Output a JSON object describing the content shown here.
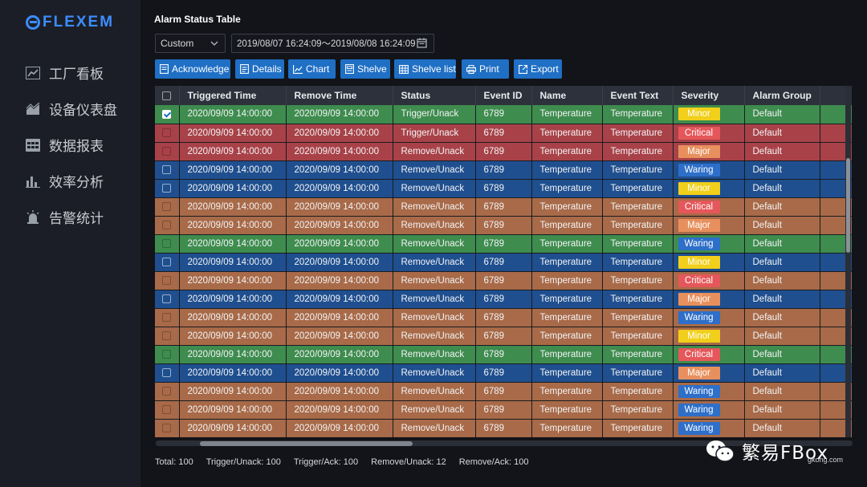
{
  "brand": {
    "logo_text": "FLEXEM",
    "logo_color": "#3c8dff"
  },
  "sidebar": {
    "items": [
      {
        "label": "工厂看板",
        "icon": "line-chart-icon"
      },
      {
        "label": "设备仪表盘",
        "icon": "area-chart-icon"
      },
      {
        "label": "数据报表",
        "icon": "grid-table-icon"
      },
      {
        "label": "效率分析",
        "icon": "bar-chart-icon"
      },
      {
        "label": "告警统计",
        "icon": "alarm-light-icon"
      }
    ]
  },
  "main": {
    "title": "Alarm Status Table",
    "filter": {
      "range_select": "Custom",
      "date_range": "2019/08/07 16:24:09～2019/08/08 16:24:09"
    },
    "toolbar": {
      "acknowledge": "Acknowledge",
      "details": "Details",
      "chart": "Chart",
      "shelve": "Shelve",
      "shelve_list": "Shelve list",
      "print": "Print",
      "export": "Export"
    },
    "table": {
      "columns": [
        "Triggered Time",
        "Remove Time",
        "Status",
        "Event ID",
        "Name",
        "Event Text",
        "Severity",
        "Alarm Group"
      ],
      "rows": [
        {
          "checked": true,
          "row_color": "green",
          "triggered": "2020/09/09 14:00:00",
          "removed": "2020/09/09 14:00:00",
          "status": "Trigger/Unack",
          "event_id": "6789",
          "name": "Temperature",
          "event_text": "Temperature",
          "severity": "Minor",
          "group": "Default"
        },
        {
          "checked": false,
          "row_color": "red",
          "triggered": "2020/09/09 14:00:00",
          "removed": "2020/09/09 14:00:00",
          "status": "Trigger/Unack",
          "event_id": "6789",
          "name": "Temperature",
          "event_text": "Temperature",
          "severity": "Critical",
          "group": "Default"
        },
        {
          "checked": false,
          "row_color": "red",
          "triggered": "2020/09/09 14:00:00",
          "removed": "2020/09/09 14:00:00",
          "status": "Remove/Unack",
          "event_id": "6789",
          "name": "Temperature",
          "event_text": "Temperature",
          "severity": "Major",
          "group": "Default"
        },
        {
          "checked": false,
          "row_color": "blue",
          "triggered": "2020/09/09 14:00:00",
          "removed": "2020/09/09 14:00:00",
          "status": "Remove/Unack",
          "event_id": "6789",
          "name": "Temperature",
          "event_text": "Temperature",
          "severity": "Waring",
          "group": "Default"
        },
        {
          "checked": false,
          "row_color": "blue",
          "triggered": "2020/09/09 14:00:00",
          "removed": "2020/09/09 14:00:00",
          "status": "Remove/Unack",
          "event_id": "6789",
          "name": "Temperature",
          "event_text": "Temperature",
          "severity": "Minor",
          "group": "Default"
        },
        {
          "checked": false,
          "row_color": "orange",
          "triggered": "2020/09/09 14:00:00",
          "removed": "2020/09/09 14:00:00",
          "status": "Remove/Unack",
          "event_id": "6789",
          "name": "Temperature",
          "event_text": "Temperature",
          "severity": "Critical",
          "group": "Default"
        },
        {
          "checked": false,
          "row_color": "orange",
          "triggered": "2020/09/09 14:00:00",
          "removed": "2020/09/09 14:00:00",
          "status": "Remove/Unack",
          "event_id": "6789",
          "name": "Temperature",
          "event_text": "Temperature",
          "severity": "Major",
          "group": "Default"
        },
        {
          "checked": false,
          "row_color": "green",
          "triggered": "2020/09/09 14:00:00",
          "removed": "2020/09/09 14:00:00",
          "status": "Remove/Unack",
          "event_id": "6789",
          "name": "Temperature",
          "event_text": "Temperature",
          "severity": "Waring",
          "group": "Default"
        },
        {
          "checked": false,
          "row_color": "blue",
          "triggered": "2020/09/09 14:00:00",
          "removed": "2020/09/09 14:00:00",
          "status": "Remove/Unack",
          "event_id": "6789",
          "name": "Temperature",
          "event_text": "Temperature",
          "severity": "Minor",
          "group": "Default"
        },
        {
          "checked": false,
          "row_color": "orange",
          "triggered": "2020/09/09 14:00:00",
          "removed": "2020/09/09 14:00:00",
          "status": "Remove/Unack",
          "event_id": "6789",
          "name": "Temperature",
          "event_text": "Temperature",
          "severity": "Critical",
          "group": "Default"
        },
        {
          "checked": false,
          "row_color": "blue",
          "triggered": "2020/09/09 14:00:00",
          "removed": "2020/09/09 14:00:00",
          "status": "Remove/Unack",
          "event_id": "6789",
          "name": "Temperature",
          "event_text": "Temperature",
          "severity": "Major",
          "group": "Default"
        },
        {
          "checked": false,
          "row_color": "orange",
          "triggered": "2020/09/09 14:00:00",
          "removed": "2020/09/09 14:00:00",
          "status": "Remove/Unack",
          "event_id": "6789",
          "name": "Temperature",
          "event_text": "Temperature",
          "severity": "Waring",
          "group": "Default"
        },
        {
          "checked": false,
          "row_color": "orange",
          "triggered": "2020/09/09 14:00:00",
          "removed": "2020/09/09 14:00:00",
          "status": "Remove/Unack",
          "event_id": "6789",
          "name": "Temperature",
          "event_text": "Temperature",
          "severity": "Minor",
          "group": "Default"
        },
        {
          "checked": false,
          "row_color": "green",
          "triggered": "2020/09/09 14:00:00",
          "removed": "2020/09/09 14:00:00",
          "status": "Remove/Unack",
          "event_id": "6789",
          "name": "Temperature",
          "event_text": "Temperature",
          "severity": "Critical",
          "group": "Default"
        },
        {
          "checked": false,
          "row_color": "blue",
          "triggered": "2020/09/09 14:00:00",
          "removed": "2020/09/09 14:00:00",
          "status": "Remove/Unack",
          "event_id": "6789",
          "name": "Temperature",
          "event_text": "Temperature",
          "severity": "Major",
          "group": "Default"
        },
        {
          "checked": false,
          "row_color": "orange",
          "triggered": "2020/09/09 14:00:00",
          "removed": "2020/09/09 14:00:00",
          "status": "Remove/Unack",
          "event_id": "6789",
          "name": "Temperature",
          "event_text": "Temperature",
          "severity": "Waring",
          "group": "Default"
        },
        {
          "checked": false,
          "row_color": "orange",
          "triggered": "2020/09/09 14:00:00",
          "removed": "2020/09/09 14:00:00",
          "status": "Remove/Unack",
          "event_id": "6789",
          "name": "Temperature",
          "event_text": "Temperature",
          "severity": "Waring",
          "group": "Default"
        },
        {
          "checked": false,
          "row_color": "orange",
          "triggered": "2020/09/09 14:00:00",
          "removed": "2020/09/09 14:00:00",
          "status": "Remove/Unack",
          "event_id": "6789",
          "name": "Temperature",
          "event_text": "Temperature",
          "severity": "Waring",
          "group": "Default"
        }
      ]
    },
    "footer": {
      "total": "Total:  100",
      "trigger_unack": "Trigger/Unack:  100",
      "trigger_ack": "Trigger/Ack:  100",
      "remove_unack": "Remove/Unack:  12",
      "remove_ack": "Remove/Ack:  100"
    }
  },
  "watermark": {
    "text": "繁易FBox",
    "sub": "gkong.com"
  },
  "colors": {
    "rows": {
      "green": "#3e8c4e",
      "red": "#a84248",
      "blue": "#1f4f8f",
      "orange": "#a86a48"
    },
    "severity": {
      "Minor": "#f1cf1a",
      "Critical": "#e5575a",
      "Major": "#e8905d",
      "Waring": "#2d6fc9"
    },
    "accent": "#1f6fc5"
  }
}
